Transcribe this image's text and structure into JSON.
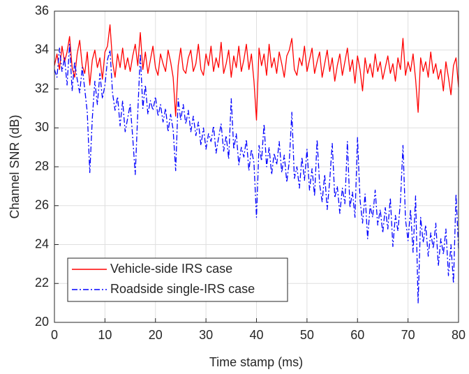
{
  "chart_data": {
    "type": "line",
    "xlabel": "Time stamp (ms)",
    "ylabel": "Channel SNR (dB)",
    "xlim": [
      0,
      80
    ],
    "ylim": [
      20,
      36
    ],
    "xticks": [
      0,
      10,
      20,
      30,
      40,
      50,
      60,
      70,
      80
    ],
    "yticks": [
      20,
      22,
      24,
      26,
      28,
      30,
      32,
      34,
      36
    ],
    "grid": true,
    "legend": "lower left",
    "x": [
      0,
      0.5,
      1,
      1.5,
      2,
      2.5,
      3,
      3.5,
      4,
      4.5,
      5,
      5.5,
      6,
      6.5,
      7,
      7.5,
      8,
      8.5,
      9,
      9.5,
      10,
      10.5,
      11,
      11.5,
      12,
      12.5,
      13,
      13.5,
      14,
      14.5,
      15,
      15.5,
      16,
      16.5,
      17,
      17.5,
      18,
      18.5,
      19,
      19.5,
      20,
      20.5,
      21,
      21.5,
      22,
      22.5,
      23,
      23.5,
      24,
      24.5,
      25,
      25.5,
      26,
      26.5,
      27,
      27.5,
      28,
      28.5,
      29,
      29.5,
      30,
      30.5,
      31,
      31.5,
      32,
      32.5,
      33,
      33.5,
      34,
      34.5,
      35,
      35.5,
      36,
      36.5,
      37,
      37.5,
      38,
      38.5,
      39,
      39.5,
      40,
      40.5,
      41,
      41.5,
      42,
      42.5,
      43,
      43.5,
      44,
      44.5,
      45,
      45.5,
      46,
      46.5,
      47,
      47.5,
      48,
      48.5,
      49,
      49.5,
      50,
      50.5,
      51,
      51.5,
      52,
      52.5,
      53,
      53.5,
      54,
      54.5,
      55,
      55.5,
      56,
      56.5,
      57,
      57.5,
      58,
      58.5,
      59,
      59.5,
      60,
      60.5,
      61,
      61.5,
      62,
      62.5,
      63,
      63.5,
      64,
      64.5,
      65,
      65.5,
      66,
      66.5,
      67,
      67.5,
      68,
      68.5,
      69,
      69.5,
      70,
      70.5,
      71,
      71.5,
      72,
      72.5,
      73,
      73.5,
      74,
      74.5,
      75,
      75.5,
      76,
      76.5,
      77,
      77.5,
      78,
      78.5,
      79,
      79.5,
      80
    ],
    "series": [
      {
        "name": "Vehicle-side IRS case",
        "color": "#ff0000",
        "dash": "solid",
        "values": [
          33.2,
          33.8,
          33.0,
          34.2,
          33.4,
          33.9,
          34.7,
          33.1,
          32.6,
          33.8,
          34.5,
          33.2,
          32.8,
          33.9,
          32.2,
          33.5,
          34.0,
          33.1,
          33.6,
          32.5,
          33.9,
          34.2,
          35.3,
          33.4,
          32.6,
          33.8,
          33.1,
          34.1,
          33.0,
          33.6,
          32.9,
          33.7,
          34.3,
          33.2,
          34.9,
          33.0,
          33.9,
          32.8,
          33.5,
          34.2,
          33.1,
          32.7,
          33.8,
          33.3,
          32.9,
          34.0,
          33.4,
          32.6,
          30.6,
          33.2,
          34.1,
          33.0,
          32.8,
          33.6,
          34.0,
          32.9,
          33.3,
          34.3,
          33.0,
          32.7,
          33.8,
          33.2,
          34.2,
          32.9,
          33.6,
          33.1,
          34.4,
          32.8,
          33.3,
          34.0,
          32.6,
          33.7,
          33.1,
          34.2,
          32.9,
          33.5,
          34.3,
          33.0,
          33.8,
          32.4,
          30.4,
          34.1,
          33.2,
          33.8,
          32.7,
          34.3,
          33.1,
          33.6,
          32.8,
          33.9,
          33.3,
          32.6,
          33.7,
          34.0,
          34.6,
          33.0,
          32.7,
          33.6,
          33.2,
          34.2,
          32.9,
          33.5,
          34.1,
          32.8,
          33.4,
          33.9,
          32.6,
          33.3,
          34.0,
          32.9,
          33.6,
          32.4,
          33.2,
          33.8,
          32.7,
          33.4,
          34.1,
          32.9,
          33.5,
          32.3,
          33.7,
          33.0,
          31.9,
          33.6,
          32.8,
          33.3,
          32.6,
          33.8,
          32.9,
          33.4,
          32.5,
          33.1,
          33.7,
          32.8,
          33.3,
          32.4,
          33.6,
          33.0,
          34.6,
          32.7,
          33.4,
          32.9,
          33.8,
          32.5,
          30.8,
          33.6,
          32.9,
          33.4,
          32.6,
          33.9,
          32.8,
          33.3,
          32.5,
          33.0,
          31.9,
          33.4,
          32.6,
          31.7,
          33.2,
          33.6,
          32.1
        ]
      },
      {
        "name": "Roadside single-IRS case",
        "color": "#0000ff",
        "dash": "dashdot",
        "values": [
          33.0,
          32.6,
          34.1,
          32.9,
          33.6,
          32.2,
          34.3,
          31.9,
          33.4,
          32.5,
          31.8,
          33.1,
          32.0,
          30.8,
          27.7,
          30.5,
          32.4,
          31.2,
          32.8,
          31.5,
          32.2,
          33.5,
          34.0,
          31.8,
          30.9,
          31.6,
          30.1,
          31.4,
          29.8,
          30.5,
          31.2,
          29.5,
          27.6,
          30.8,
          33.8,
          31.0,
          32.2,
          30.7,
          31.4,
          30.9,
          31.6,
          30.6,
          31.2,
          30.3,
          31.0,
          29.8,
          30.7,
          29.9,
          27.8,
          31.5,
          30.4,
          31.2,
          30.2,
          30.9,
          29.8,
          30.6,
          29.6,
          30.3,
          29.1,
          30.0,
          28.9,
          29.7,
          29.3,
          30.1,
          28.7,
          29.5,
          30.2,
          28.8,
          29.6,
          28.4,
          31.5,
          28.9,
          29.7,
          28.1,
          29.0,
          28.5,
          29.4,
          27.8,
          28.9,
          28.2,
          25.4,
          29.1,
          28.3,
          30.2,
          28.0,
          29.0,
          27.6,
          28.7,
          28.1,
          29.3,
          27.7,
          28.6,
          27.2,
          28.3,
          30.8,
          27.4,
          28.0,
          26.9,
          28.5,
          27.3,
          28.9,
          26.8,
          27.9,
          26.5,
          29.4,
          27.1,
          26.2,
          27.6,
          25.8,
          27.3,
          29.2,
          26.4,
          27.0,
          25.6,
          26.9,
          26.1,
          29.3,
          25.9,
          26.7,
          25.4,
          29.5,
          26.3,
          25.1,
          26.6,
          24.3,
          26.0,
          25.4,
          26.8,
          25.0,
          25.8,
          24.6,
          25.9,
          24.8,
          26.4,
          23.9,
          25.5,
          24.7,
          26.2,
          29.1,
          25.3,
          24.2,
          25.8,
          23.6,
          26.5,
          21.0,
          25.4,
          24.1,
          25.0,
          23.4,
          24.6,
          23.8,
          25.1,
          22.9,
          24.3,
          23.5,
          24.8,
          22.4,
          24.0,
          22.0,
          26.6,
          23.8
        ]
      }
    ]
  }
}
